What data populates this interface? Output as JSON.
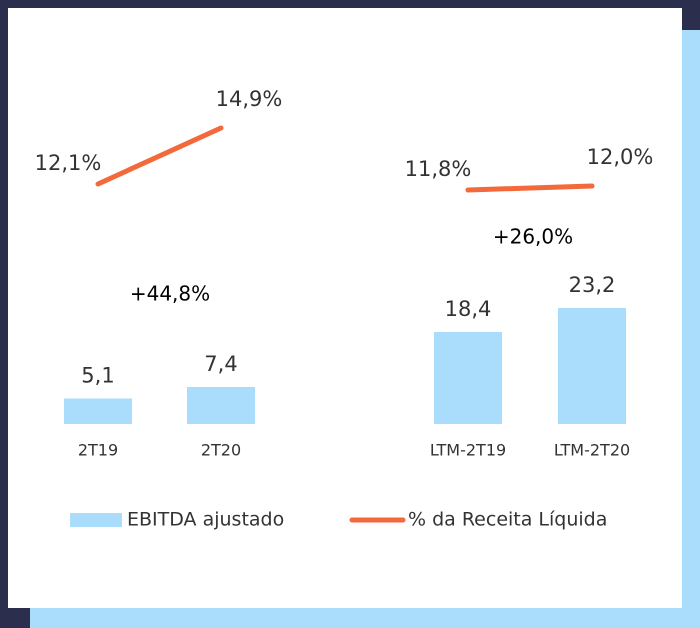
{
  "chart_data": [
    {
      "type": "bar",
      "categories": [
        "2T19",
        "2T20"
      ],
      "annotation": "+44,8%",
      "series": [
        {
          "name": "EBITDA ajustado",
          "type": "bar",
          "color": "#a9ddfb",
          "values": [
            5.1,
            7.4
          ],
          "value_labels": [
            "5,1",
            "7,4"
          ]
        },
        {
          "name": "% da Receita Líquida",
          "type": "line",
          "color": "#f4693c",
          "values": [
            12.1,
            14.9
          ],
          "value_labels": [
            "12,1%",
            "14,9%"
          ]
        }
      ]
    },
    {
      "type": "bar",
      "categories": [
        "LTM-2T19",
        "LTM-2T20"
      ],
      "annotation": "+26,0%",
      "series": [
        {
          "type": "bar",
          "color": "#a9ddfb",
          "values": [
            18.4,
            23.2
          ],
          "value_labels": [
            "18,4",
            "23,2"
          ]
        },
        {
          "type": "line",
          "color": "#f4693c",
          "values": [
            11.8,
            12.0
          ],
          "value_labels": [
            "11,8%",
            "12,0%"
          ]
        }
      ]
    }
  ]
}
